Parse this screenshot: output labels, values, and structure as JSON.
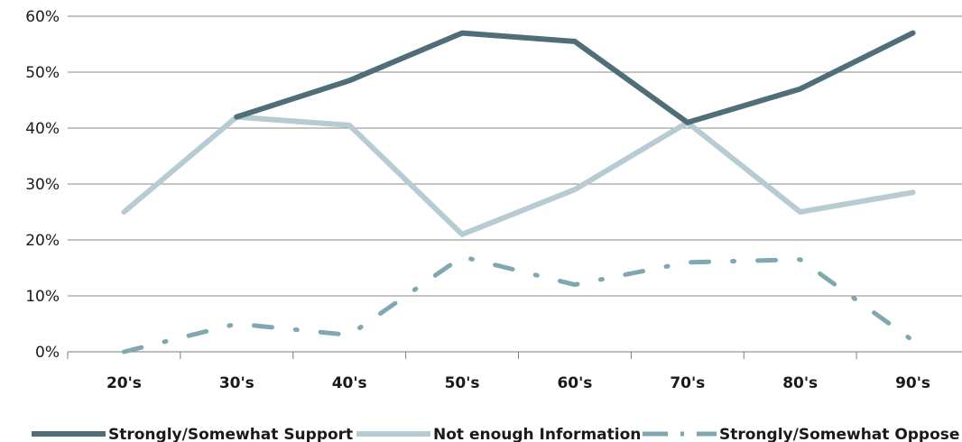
{
  "chart_data": {
    "type": "line",
    "title": "",
    "xlabel": "",
    "ylabel": "",
    "categories": [
      "20's",
      "30's",
      "40's",
      "50's",
      "60's",
      "70's",
      "80's",
      "90's"
    ],
    "ylim": [
      0,
      60
    ],
    "yticks": [
      "0%",
      "10%",
      "20%",
      "30%",
      "40%",
      "50%",
      "60%"
    ],
    "y_unit": "%",
    "grid": "horizontal",
    "legend_position": "bottom",
    "series": [
      {
        "name": "Strongly/Somewhat Support",
        "values": [
          null,
          42,
          48.5,
          57,
          55.5,
          41,
          47,
          57
        ],
        "color": "#4f6e78",
        "style": "solid"
      },
      {
        "name": "Not enough Information",
        "values": [
          25,
          42,
          40.5,
          21,
          29,
          41,
          25,
          28.5
        ],
        "color": "#b7cbd2",
        "style": "solid"
      },
      {
        "name": "Strongly/Somewhat Oppose",
        "values": [
          0,
          5,
          3,
          17,
          12,
          16,
          16.5,
          2
        ],
        "color": "#7fa8b0",
        "style": "dashdot"
      }
    ]
  }
}
